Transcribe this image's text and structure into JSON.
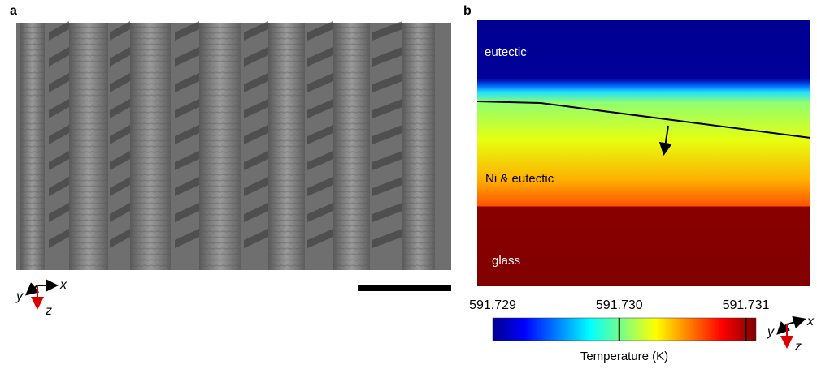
{
  "panel_a": {
    "label": "a",
    "axes": {
      "x": "x",
      "y": "y",
      "z": "z"
    }
  },
  "panel_b": {
    "label": "b",
    "regions": [
      "eutectic",
      "Ni & eutectic",
      "glass"
    ],
    "colorbar": {
      "title": "Temperature (K)",
      "colormap": "jet",
      "lim": [
        591.729,
        591.73108
      ],
      "ticks": [
        591.729,
        {
          "value": 591.73,
          "label": "591.730"
        },
        591.731
      ]
    },
    "axes": {
      "x": "x",
      "y": "y",
      "z": "z"
    }
  }
}
